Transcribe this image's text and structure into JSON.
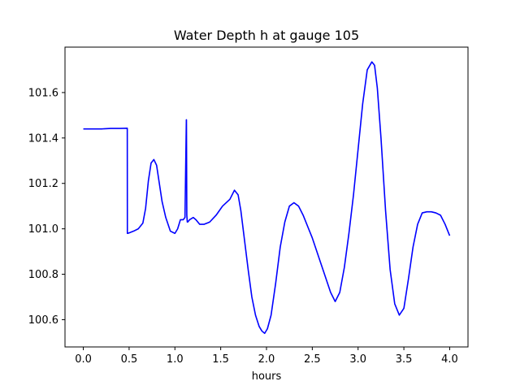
{
  "chart_data": {
    "type": "line",
    "title": "Water Depth h at gauge 105",
    "xlabel": "hours",
    "ylabel": "",
    "xlim": [
      -0.2,
      4.2
    ],
    "ylim": [
      100.48,
      101.8
    ],
    "xticks": [
      0.0,
      0.5,
      1.0,
      1.5,
      2.0,
      2.5,
      3.0,
      3.5,
      4.0
    ],
    "xtick_labels": [
      "0.0",
      "0.5",
      "1.0",
      "1.5",
      "2.0",
      "2.5",
      "3.0",
      "3.5",
      "4.0"
    ],
    "yticks": [
      100.6,
      100.8,
      101.0,
      101.2,
      101.4,
      101.6
    ],
    "ytick_labels": [
      "100.6",
      "100.8",
      "101.0",
      "101.2",
      "101.4",
      "101.6"
    ],
    "grid": false,
    "series": [
      {
        "color": "#0000ff",
        "x": [
          0.0,
          0.1,
          0.2,
          0.3,
          0.4,
          0.48,
          0.481,
          0.5,
          0.55,
          0.6,
          0.65,
          0.68,
          0.71,
          0.74,
          0.77,
          0.8,
          0.83,
          0.86,
          0.9,
          0.95,
          1.0,
          1.03,
          1.06,
          1.09,
          1.11,
          1.125,
          1.126,
          1.13,
          1.135,
          1.14,
          1.16,
          1.2,
          1.23,
          1.27,
          1.32,
          1.38,
          1.45,
          1.52,
          1.6,
          1.65,
          1.69,
          1.72,
          1.76,
          1.8,
          1.84,
          1.88,
          1.92,
          1.95,
          1.98,
          2.01,
          2.05,
          2.1,
          2.15,
          2.2,
          2.25,
          2.3,
          2.35,
          2.4,
          2.5,
          2.6,
          2.7,
          2.75,
          2.8,
          2.85,
          2.9,
          2.95,
          3.0,
          3.05,
          3.1,
          3.15,
          3.18,
          3.21,
          3.25,
          3.3,
          3.35,
          3.4,
          3.45,
          3.5,
          3.55,
          3.6,
          3.65,
          3.7,
          3.75,
          3.8,
          3.85,
          3.9,
          3.95,
          4.0
        ],
        "y": [
          101.44,
          101.44,
          101.44,
          101.442,
          101.442,
          101.443,
          100.98,
          100.982,
          100.99,
          101.0,
          101.025,
          101.09,
          101.21,
          101.29,
          101.305,
          101.28,
          101.2,
          101.12,
          101.05,
          100.99,
          100.98,
          101.0,
          101.04,
          101.04,
          101.05,
          101.48,
          101.48,
          101.06,
          101.03,
          101.03,
          101.04,
          101.05,
          101.04,
          101.02,
          101.02,
          101.03,
          101.06,
          101.1,
          101.13,
          101.17,
          101.15,
          101.08,
          100.95,
          100.82,
          100.7,
          100.62,
          100.57,
          100.55,
          100.54,
          100.56,
          100.62,
          100.76,
          100.92,
          101.03,
          101.1,
          101.115,
          101.1,
          101.06,
          100.96,
          100.84,
          100.72,
          100.68,
          100.72,
          100.83,
          100.98,
          101.15,
          101.35,
          101.55,
          101.7,
          101.735,
          101.72,
          101.62,
          101.4,
          101.08,
          100.82,
          100.67,
          100.62,
          100.65,
          100.78,
          100.92,
          101.02,
          101.07,
          101.075,
          101.075,
          101.07,
          101.06,
          101.02,
          100.97
        ]
      }
    ]
  }
}
